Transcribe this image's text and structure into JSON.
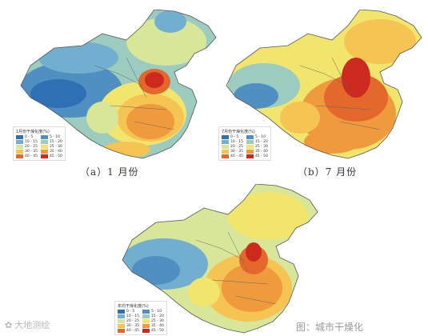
{
  "panels": [
    {
      "caption": "（a）1 月份",
      "legend_title": "1月份干燥化度(%)"
    },
    {
      "caption": "（b）7 月份",
      "legend_title": "7月份干燥化度(%)"
    },
    {
      "caption": "",
      "legend_title": "年均干燥化度(%)"
    }
  ],
  "legend": {
    "items": [
      {
        "label": "0 - 5",
        "color": "#2f6fb3"
      },
      {
        "label": "5 - 10",
        "color": "#4f8fc2"
      },
      {
        "label": "10 - 15",
        "color": "#72aecf"
      },
      {
        "label": "15 - 20",
        "color": "#9ccbc0"
      },
      {
        "label": "20 - 25",
        "color": "#d8e69a"
      },
      {
        "label": "25 - 30",
        "color": "#f2e56e"
      },
      {
        "label": "30 - 35",
        "color": "#f5c453"
      },
      {
        "label": "35 - 40",
        "color": "#ef9a3d"
      },
      {
        "label": "40 - 45",
        "color": "#e4672b"
      },
      {
        "label": "45 - 50",
        "color": "#cc2a1e"
      }
    ]
  },
  "watermark": {
    "text": "大地测绘"
  },
  "bottom_text": "图：城市干燥化"
}
